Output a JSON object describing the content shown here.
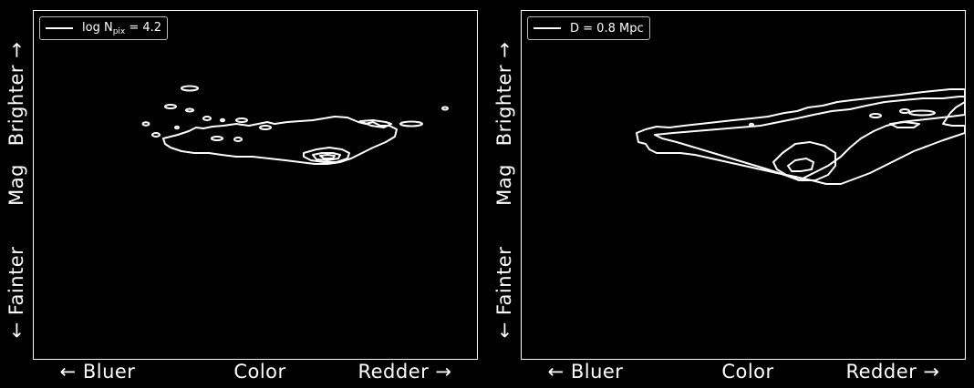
{
  "chart_data": [
    {
      "type": "contour",
      "legend": {
        "label_prefix": "log N",
        "label_sub": "pix",
        "label_suffix": " = 4.2"
      },
      "xlabel_left": "← Bluer",
      "xlabel_center": "Color",
      "xlabel_right": "Redder →",
      "ylabel_top": "Brighter →",
      "ylabel_center": "Mag",
      "ylabel_bottom": "← Fainter",
      "legend_position": "top-left",
      "grid": false
    },
    {
      "type": "contour",
      "legend": {
        "label": "D = 0.8 Mpc"
      },
      "xlabel_left": "← Bluer",
      "xlabel_center": "Color",
      "xlabel_right": "Redder →",
      "ylabel_top": "Brighter →",
      "ylabel_center": "Mag",
      "ylabel_bottom": "← Fainter",
      "legend_position": "top-left",
      "grid": false
    }
  ],
  "colors": {
    "background": "#000000",
    "foreground": "#ffffff"
  }
}
